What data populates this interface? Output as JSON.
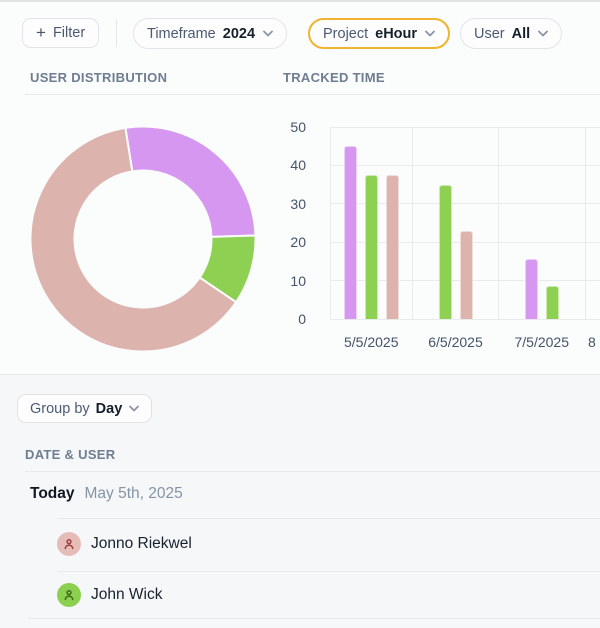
{
  "filter_bar": {
    "filter_button": {
      "icon": "plus",
      "label": "Filter"
    },
    "filters": [
      {
        "id": "timeframe",
        "label": "Timeframe",
        "value": "2024",
        "highlighted": false
      },
      {
        "id": "project",
        "label": "Project",
        "value": "eHour",
        "highlighted": true
      },
      {
        "id": "user",
        "label": "User",
        "value": "All",
        "highlighted": false
      }
    ],
    "highlight_color": "#f0b42f"
  },
  "sections": {
    "user_distribution_title": "USER DISTRIBUTION",
    "tracked_time_title": "TRACKED TIME"
  },
  "chart_data": [
    {
      "type": "pie",
      "title": "USER DISTRIBUTION",
      "donut": true,
      "start_angle_deg": -9,
      "legend": "none",
      "segments": [
        {
          "name": "purple-series",
          "percent": 27,
          "color": "#d697f0"
        },
        {
          "name": "green-series",
          "percent": 10,
          "color": "#8ed052"
        },
        {
          "name": "pink-series",
          "percent": 63,
          "color": "#ddb3ae"
        }
      ]
    },
    {
      "type": "bar",
      "title": "TRACKED TIME",
      "categories": [
        "5/5/2025",
        "6/5/2025",
        "7/5/2025"
      ],
      "next_category_partial_label": "8",
      "series": [
        {
          "name": "purple-series",
          "color": "#d697f0",
          "values": [
            45,
            null,
            15.5
          ]
        },
        {
          "name": "green-series",
          "color": "#8ed052",
          "values": [
            37.5,
            35,
            8.5
          ]
        },
        {
          "name": "pink-series",
          "color": "#ddb3ae",
          "values": [
            37.5,
            23,
            null
          ]
        }
      ],
      "ylim": [
        0,
        50
      ],
      "yticks": [
        0,
        10,
        20,
        30,
        40,
        50
      ],
      "grid": true,
      "legend": "none"
    }
  ],
  "group_bar": {
    "label": "Group by",
    "value": "Day"
  },
  "list": {
    "header": "DATE & USER",
    "date_group": {
      "label": "Today",
      "date": "May 5th, 2025"
    },
    "rows": [
      {
        "name": "Jonno Riekwel",
        "avatar_bg": "#e6bcb8",
        "avatar_icon_color": "#9a4040"
      },
      {
        "name": "John Wick",
        "avatar_bg": "#8bd04f",
        "avatar_icon_color": "#3f6b1d"
      }
    ]
  }
}
